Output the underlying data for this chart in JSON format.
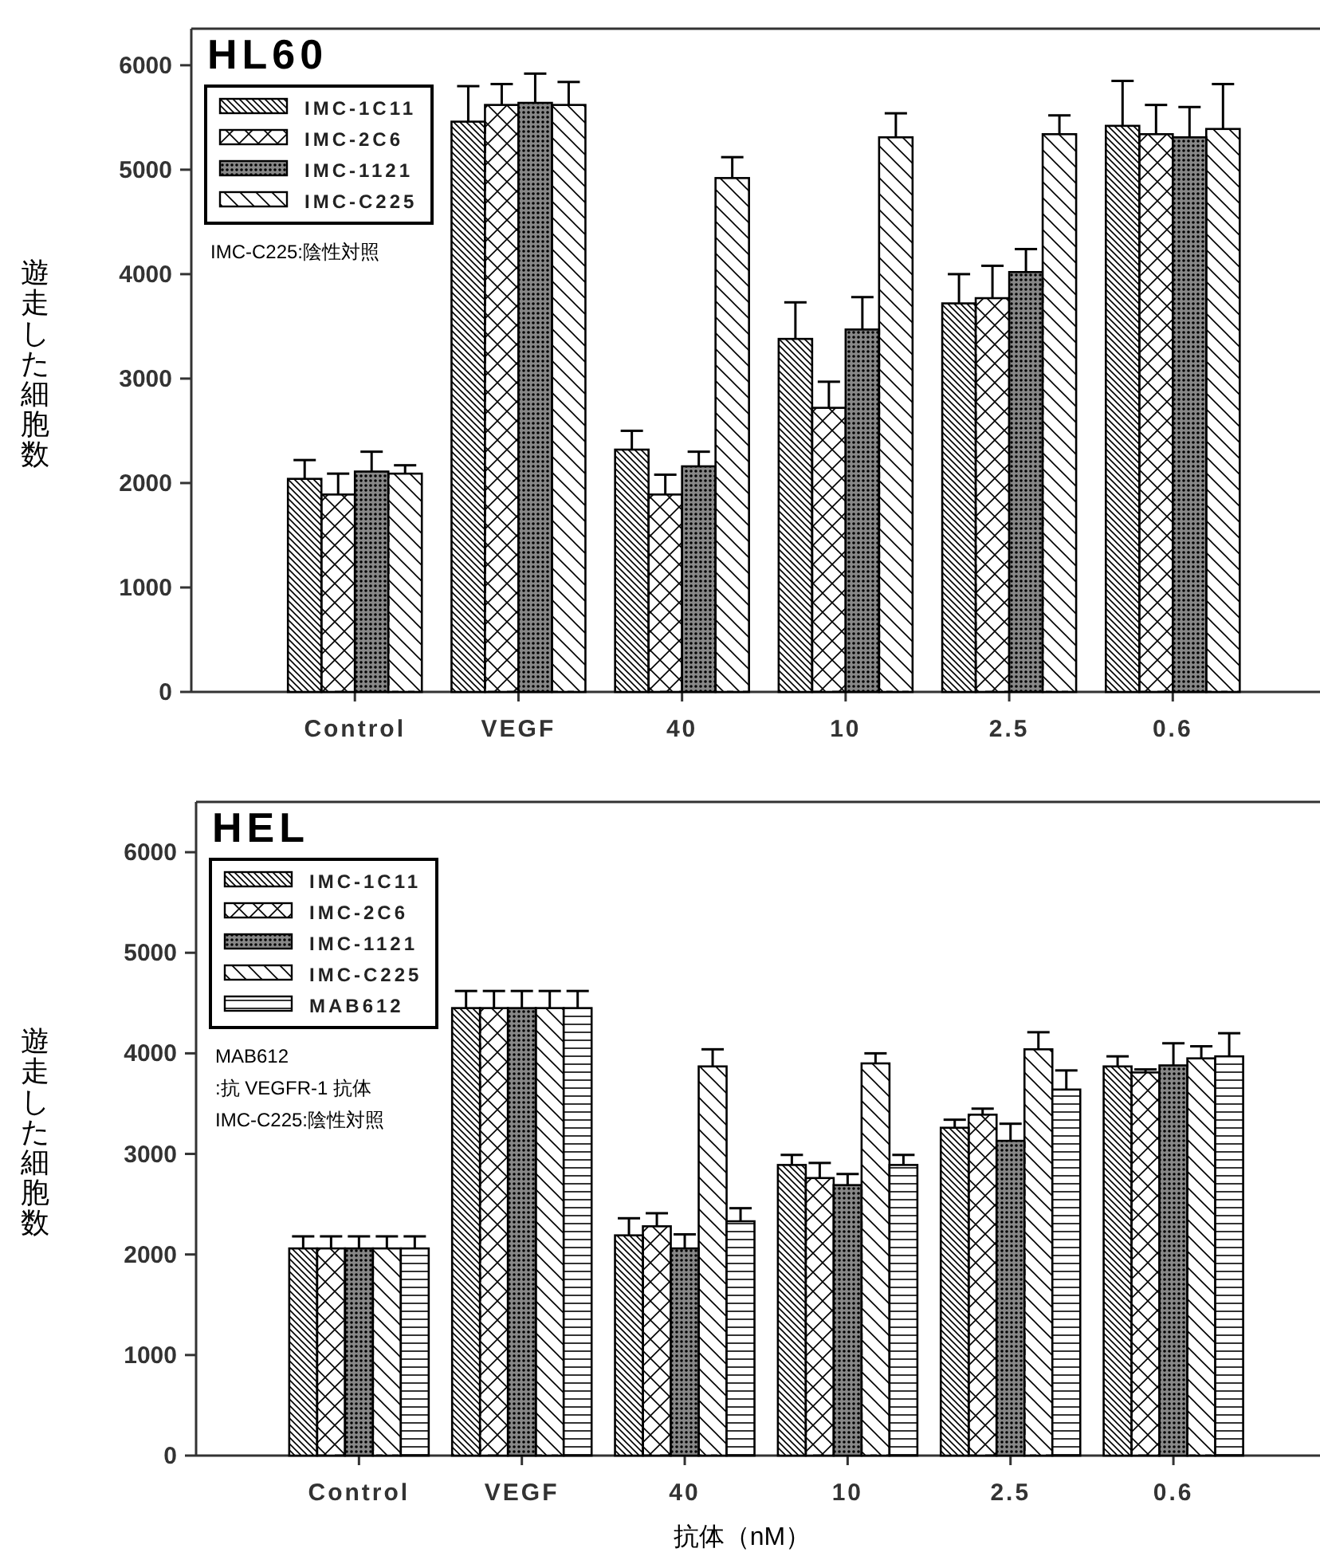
{
  "chart_data": [
    {
      "type": "bar",
      "title": "HL60",
      "ylabel": "遊走した細胞数",
      "categories": [
        "Control",
        "VEGF",
        "40",
        "10",
        "2.5",
        "0.6"
      ],
      "ylim": [
        0,
        6350
      ],
      "yticks": [
        0,
        1000,
        2000,
        3000,
        4000,
        5000,
        6000
      ],
      "legend": "top left",
      "annotations": [
        "IMC-C225:陰性対照"
      ],
      "series": [
        {
          "name": "IMC-1C11",
          "color": "#000000",
          "values": [
            2040,
            5460,
            2320,
            3380,
            3720,
            5420
          ],
          "errors": [
            [
              2040,
              2220
            ],
            [
              5460,
              5800
            ],
            [
              2320,
              2500
            ],
            [
              3380,
              3730
            ],
            [
              3720,
              4000
            ],
            [
              5420,
              5850
            ]
          ]
        },
        {
          "name": "IMC-2C6",
          "color": "#000000",
          "values": [
            1890,
            5620,
            1890,
            2720,
            3770,
            5340
          ],
          "errors": [
            [
              1890,
              2090
            ],
            [
              5620,
              5820
            ],
            [
              1890,
              2080
            ],
            [
              2720,
              2970
            ],
            [
              3770,
              4080
            ],
            [
              5340,
              5620
            ]
          ]
        },
        {
          "name": "IMC-1121",
          "color": "#000000",
          "values": [
            2110,
            5640,
            2160,
            3470,
            4020,
            5310
          ],
          "errors": [
            [
              2110,
              2300
            ],
            [
              5640,
              5920
            ],
            [
              2160,
              2300
            ],
            [
              3470,
              3780
            ],
            [
              4020,
              4240
            ],
            [
              5310,
              5600
            ]
          ]
        },
        {
          "name": "IMC-C225",
          "color": "#000000",
          "values": [
            2090,
            5620,
            4920,
            5310,
            5340,
            5390
          ],
          "errors": [
            [
              2090,
              2170
            ],
            [
              5620,
              5840
            ],
            [
              4920,
              5120
            ],
            [
              5310,
              5540
            ],
            [
              5340,
              5520
            ],
            [
              5390,
              5820
            ]
          ]
        }
      ]
    },
    {
      "type": "bar",
      "title": "HEL",
      "xlabel": "抗体（nM）",
      "ylabel": "遊走した細胞数",
      "categories": [
        "Control",
        "VEGF",
        "40",
        "10",
        "2.5",
        "0.6"
      ],
      "ylim": [
        0,
        6500
      ],
      "yticks": [
        0,
        1000,
        2000,
        3000,
        4000,
        5000,
        6000
      ],
      "legend": "top left",
      "annotations": [
        "MAB612",
        ":抗 VEGFR-1 抗体",
        "IMC-C225:陰性対照"
      ],
      "series": [
        {
          "name": "IMC-1C11",
          "color": "#000000",
          "values": [
            2060,
            4450,
            2190,
            2890,
            3260,
            3870
          ],
          "errors": [
            [
              2060,
              2180
            ],
            [
              4450,
              4620
            ],
            [
              2190,
              2360
            ],
            [
              2890,
              2990
            ],
            [
              3260,
              3340
            ],
            [
              3870,
              3970
            ]
          ]
        },
        {
          "name": "IMC-2C6",
          "color": "#000000",
          "values": [
            2060,
            4450,
            2280,
            2760,
            3390,
            3810
          ],
          "errors": [
            [
              2060,
              2180
            ],
            [
              4450,
              4620
            ],
            [
              2280,
              2410
            ],
            [
              2760,
              2910
            ],
            [
              3390,
              3450
            ],
            [
              3810,
              3840
            ]
          ]
        },
        {
          "name": "IMC-1121",
          "color": "#000000",
          "values": [
            2060,
            4450,
            2060,
            2690,
            3130,
            3880
          ],
          "errors": [
            [
              2060,
              2180
            ],
            [
              4450,
              4620
            ],
            [
              2060,
              2200
            ],
            [
              2690,
              2800
            ],
            [
              3130,
              3300
            ],
            [
              3880,
              4100
            ]
          ]
        },
        {
          "name": "IMC-C225",
          "color": "#000000",
          "values": [
            2060,
            4450,
            3870,
            3900,
            4040,
            3950
          ],
          "errors": [
            [
              2060,
              2180
            ],
            [
              4450,
              4620
            ],
            [
              3870,
              4040
            ],
            [
              3900,
              4000
            ],
            [
              4040,
              4210
            ],
            [
              3950,
              4070
            ]
          ]
        },
        {
          "name": "MAB612",
          "color": "#000000",
          "values": [
            2060,
            4450,
            2330,
            2890,
            3640,
            3970
          ],
          "errors": [
            [
              2060,
              2180
            ],
            [
              4450,
              4620
            ],
            [
              2330,
              2460
            ],
            [
              2890,
              2990
            ],
            [
              3640,
              3830
            ],
            [
              3970,
              4200
            ]
          ]
        }
      ]
    }
  ]
}
